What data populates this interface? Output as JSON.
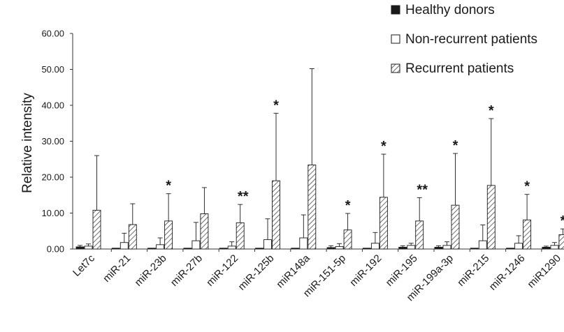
{
  "chart_data": {
    "type": "bar",
    "ylabel": "Relative intensity",
    "xlabel": "",
    "ylim": [
      0,
      60
    ],
    "yticks": [
      "0.00",
      "10.00",
      "20.00",
      "30.00",
      "40.00",
      "50.00",
      "60.00"
    ],
    "legend_position": "top-right",
    "grid": false,
    "categories": [
      "Let7c",
      "miR-21",
      "miR-23b",
      "miR-27b",
      "miR-122",
      "miR-125b",
      "miR148a",
      "miR-151-5p",
      "miR-192",
      "miR-195",
      "miR-199a-3p",
      "miR-215",
      "miR-1246",
      "miR1290"
    ],
    "series": [
      {
        "name": "Healthy donors",
        "fill": "solid",
        "color": "#1a1a1a",
        "values": [
          0.6,
          0.1,
          0.1,
          0.1,
          0.1,
          0.1,
          0.1,
          0.4,
          0.1,
          0.5,
          0.5,
          0.1,
          0.1,
          0.5
        ],
        "error": [
          0.4,
          0.1,
          0.1,
          0.1,
          0.1,
          0.1,
          0.1,
          0.5,
          0.1,
          0.4,
          0.4,
          0.1,
          0.1,
          0.3
        ]
      },
      {
        "name": "Non-recurrent patients",
        "fill": "hollow",
        "color": "#ffffff",
        "values": [
          0.8,
          1.8,
          1.2,
          2.3,
          0.8,
          2.6,
          3.1,
          0.7,
          1.6,
          1.0,
          1.0,
          2.3,
          1.6,
          1.0
        ],
        "error": [
          0.6,
          2.6,
          1.9,
          5.1,
          1.2,
          5.8,
          6.4,
          0.8,
          3.0,
          0.6,
          1.0,
          4.4,
          2.1,
          0.8
        ]
      },
      {
        "name": "Recurrent patients",
        "fill": "hatched",
        "color": "#ffffff",
        "values": [
          10.8,
          6.8,
          7.8,
          9.8,
          7.3,
          19.0,
          23.4,
          5.3,
          14.4,
          7.8,
          12.2,
          17.7,
          8.1,
          4.0
        ],
        "error": [
          15.2,
          5.8,
          7.6,
          7.3,
          5.1,
          18.8,
          26.8,
          4.6,
          12.0,
          6.5,
          14.4,
          18.6,
          7.1,
          1.6
        ]
      }
    ],
    "significance": [
      "",
      "",
      "*",
      "",
      "**",
      "*",
      "",
      "*",
      "*",
      "**",
      "*",
      "*",
      "*",
      "**"
    ]
  }
}
